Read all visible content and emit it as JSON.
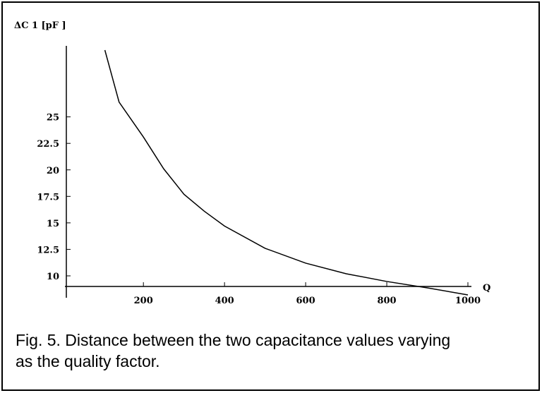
{
  "chart_data": {
    "type": "line",
    "ylabel": "ΔC 1 [pF ]",
    "xlabel": "Q",
    "caption": "Fig. 5. Distance between the two capacitance values varying as the quality factor.",
    "x": [
      105,
      140,
      200,
      250,
      300,
      350,
      400,
      500,
      600,
      700,
      800,
      900,
      1000
    ],
    "values": [
      31.3,
      26.4,
      23.1,
      20.1,
      17.7,
      16.1,
      14.7,
      12.6,
      11.2,
      10.2,
      9.47,
      8.87,
      8.2
    ],
    "color": "#000000",
    "xlim": [
      10,
      1000
    ],
    "ylim": [
      9,
      31.7
    ],
    "xticks": [
      200,
      400,
      600,
      800,
      1000
    ],
    "yticks": [
      10,
      12.5,
      15,
      17.5,
      20,
      22.5,
      25
    ]
  }
}
